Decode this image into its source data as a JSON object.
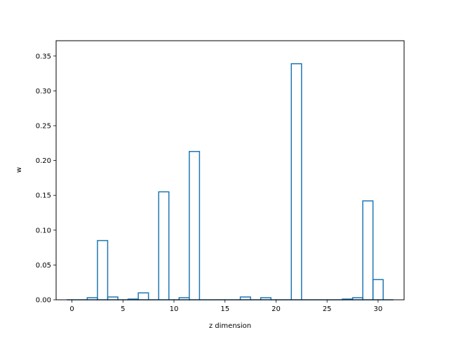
{
  "chart_data": {
    "type": "bar",
    "style": "step-outline",
    "xlabel": "z dimension",
    "ylabel": "w",
    "xlim": [
      -1.55,
      32.55
    ],
    "ylim": [
      0,
      0.372
    ],
    "xticks": [
      0,
      5,
      10,
      15,
      20,
      25,
      30
    ],
    "yticks": [
      "0.00",
      "0.05",
      "0.10",
      "0.15",
      "0.20",
      "0.25",
      "0.30",
      "0.35"
    ],
    "yticks_values": [
      0,
      0.05,
      0.1,
      0.15,
      0.2,
      0.25,
      0.3,
      0.35
    ],
    "x": [
      0,
      1,
      2,
      3,
      4,
      5,
      6,
      7,
      8,
      9,
      10,
      11,
      12,
      13,
      14,
      15,
      16,
      17,
      18,
      19,
      20,
      21,
      22,
      23,
      24,
      25,
      26,
      27,
      28,
      29,
      30,
      31
    ],
    "values": [
      0.0,
      0.0,
      0.003,
      0.085,
      0.004,
      0.0,
      0.001,
      0.01,
      0.0,
      0.155,
      0.0,
      0.003,
      0.213,
      0.0,
      0.0,
      0.0,
      0.0,
      0.004,
      0.0,
      0.003,
      0.0,
      0.0,
      0.339,
      0.0,
      0.0,
      0.0,
      0.0,
      0.001,
      0.003,
      0.142,
      0.029,
      0.0
    ],
    "line_color": "#1f77b4",
    "grid": false
  }
}
